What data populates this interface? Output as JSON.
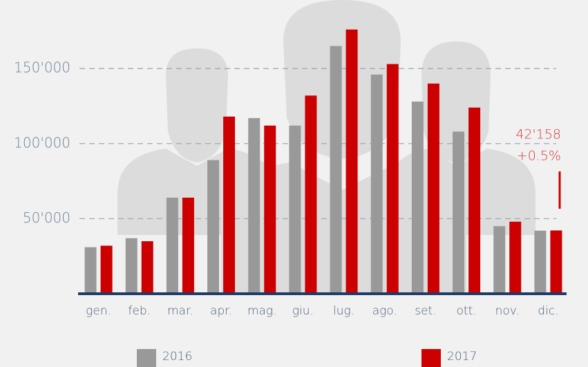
{
  "chart_data": {
    "type": "bar",
    "categories": [
      "gen.",
      "feb.",
      "mar.",
      "apr.",
      "mag.",
      "giu.",
      "lug.",
      "ago.",
      "set.",
      "ott.",
      "nov.",
      "dic."
    ],
    "series": [
      {
        "name": "2016",
        "color": "#999999",
        "values": [
          31000,
          37000,
          64000,
          89000,
          117000,
          112000,
          165000,
          146000,
          128000,
          108000,
          45000,
          42000
        ]
      },
      {
        "name": "2017",
        "color": "#cc0000",
        "values": [
          32000,
          35000,
          64000,
          118000,
          112000,
          132000,
          176000,
          153000,
          140000,
          124000,
          48000,
          42158
        ]
      }
    ],
    "ylim": [
      0,
      180000
    ],
    "yticks": [
      {
        "value": 50000,
        "label": "50'000"
      },
      {
        "value": 100000,
        "label": "100'000"
      },
      {
        "value": 150000,
        "label": "150'000"
      }
    ],
    "grid": true,
    "annotations": [
      "42'158",
      "+0.5%"
    ]
  }
}
